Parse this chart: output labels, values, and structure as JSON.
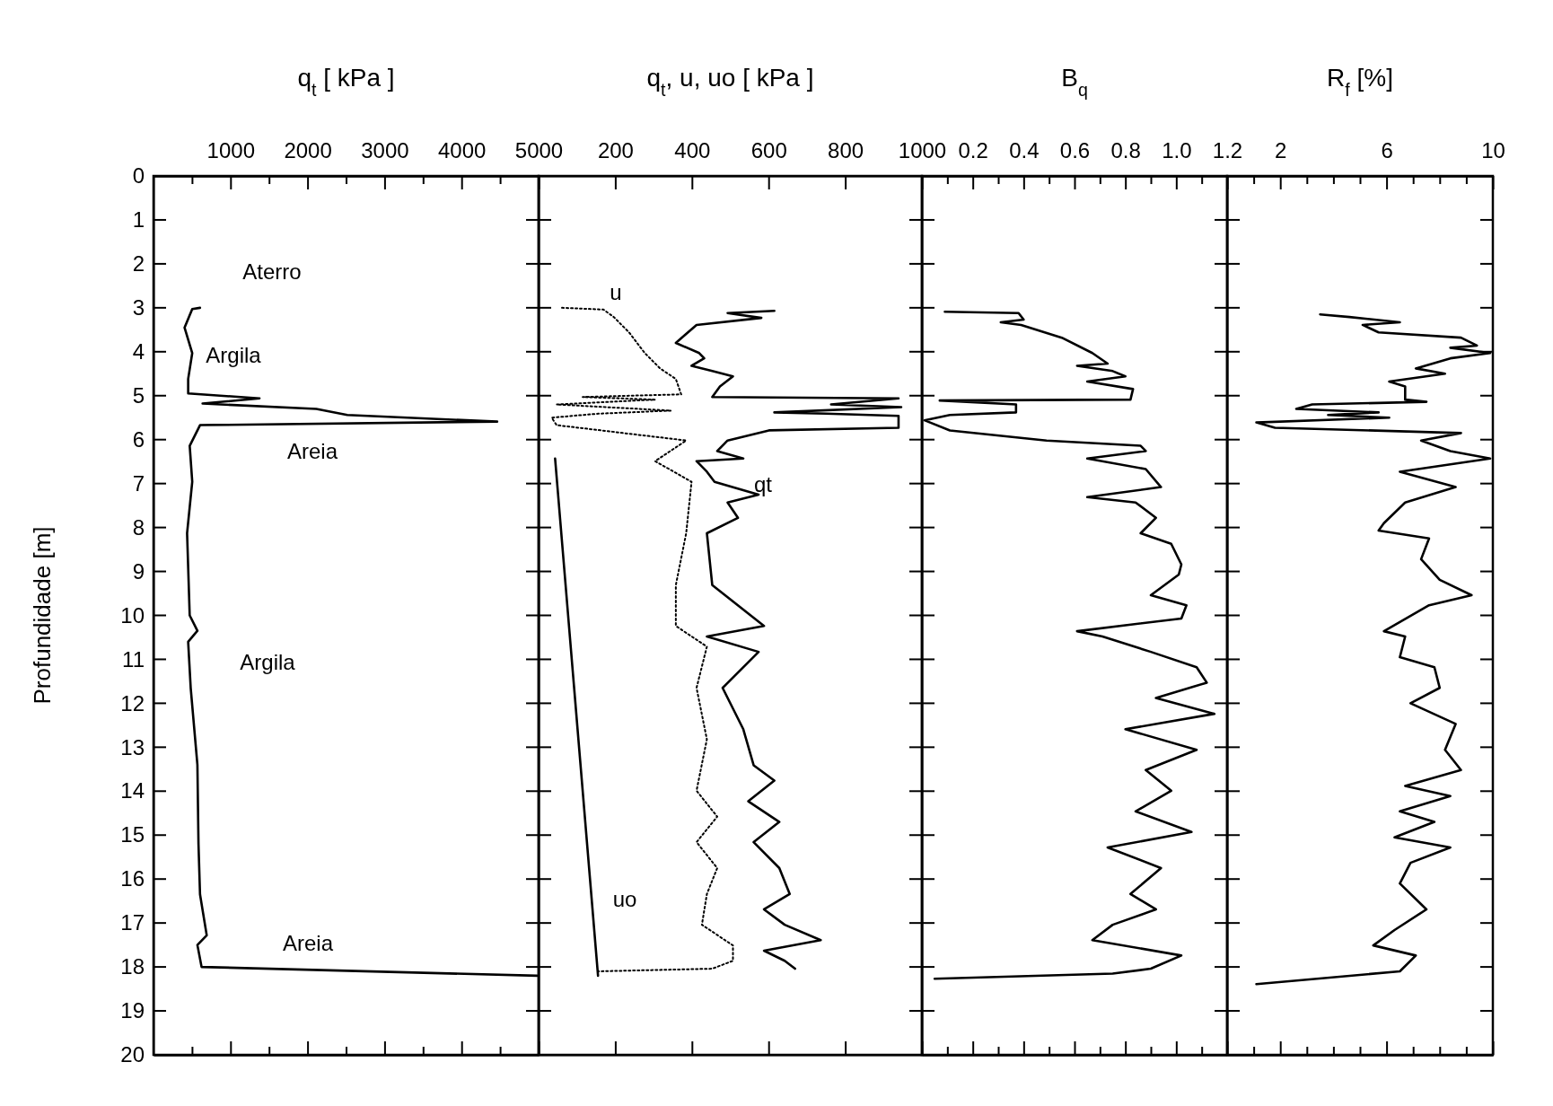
{
  "chart_data": [
    {
      "type": "line",
      "xlabel": "q$_{t}$ [ kPa ]",
      "ylabel": "Profundidade [m]",
      "xlim": [
        0,
        5000
      ],
      "ylim": [
        20,
        0
      ],
      "xticks": [
        {
          "value": 500,
          "label": null
        },
        1000,
        {
          "value": 1500,
          "label": null
        },
        2000,
        {
          "value": 2500,
          "label": null
        },
        3000,
        {
          "value": 3500,
          "label": null
        },
        4000,
        {
          "value": 4500,
          "label": null
        },
        5000
      ],
      "yticks": [
        0,
        1,
        2,
        3,
        4,
        5,
        6,
        7,
        8,
        9,
        10,
        11,
        12,
        13,
        14,
        15,
        16,
        17,
        18,
        19,
        20
      ],
      "series": [
        {
          "color": "#000000",
          "line_style": "solid",
          "x": [
            604,
            503,
            403,
            503,
            450,
            450,
            1376,
            637,
            2114,
            2516,
            4462,
            604,
            470,
            503,
            436,
            470,
            570,
            450,
            483,
            570,
            584,
            604,
            691,
            570,
            624,
            4980
          ],
          "values": [
            3.0,
            3.03,
            3.45,
            4.03,
            4.62,
            4.95,
            5.06,
            5.18,
            5.3,
            5.44,
            5.59,
            5.67,
            6.14,
            6.96,
            8.13,
            10.0,
            10.35,
            10.6,
            11.65,
            13.4,
            15.2,
            16.35,
            17.28,
            17.5,
            18.0,
            18.2
          ]
        }
      ],
      "annotations": [
        "Aterro",
        "Argila",
        "Areia",
        "Argila",
        "Areia"
      ]
    },
    {
      "type": "line",
      "xlabel": "q$_{t}$, u, uo [ kPa ]",
      "xlim": [
        0,
        1000
      ],
      "ylim": [
        20,
        0
      ],
      "tick_labels": "x",
      "xticks": [
        200,
        400,
        600,
        800,
        1000
      ],
      "yticks": [
        0,
        1,
        2,
        3,
        4,
        5,
        6,
        7,
        8,
        9,
        10,
        11,
        12,
        13,
        14,
        15,
        16,
        17,
        18,
        19,
        20
      ],
      "series": [
        {
          "name": "qt",
          "color": "#000000",
          "line_style": "solid",
          "x": [
            615,
            493,
            581,
            412,
            358,
            419,
            432,
            399,
            453,
            507,
            473,
            453,
            939,
            763,
            946,
            615,
            750,
            939,
            939,
            601,
            493,
            466,
            534,
            412,
            439,
            459,
            574,
            493,
            520,
            439,
            453,
            588,
            439,
            574,
            480,
            534,
            561,
            615,
            547,
            628,
            561,
            628,
            655,
            588,
            642,
            736,
            588,
            642,
            669
          ],
          "values": [
            3.07,
            3.12,
            3.23,
            3.39,
            3.8,
            4.03,
            4.15,
            4.32,
            4.44,
            4.56,
            4.79,
            5.03,
            5.06,
            5.2,
            5.26,
            5.38,
            5.41,
            5.46,
            5.73,
            5.79,
            6.02,
            6.26,
            6.43,
            6.49,
            6.73,
            6.96,
            7.25,
            7.43,
            7.78,
            8.13,
            9.31,
            10.24,
            10.48,
            10.83,
            11.65,
            12.59,
            13.41,
            13.76,
            14.23,
            14.7,
            15.16,
            15.75,
            16.34,
            16.69,
            17.04,
            17.39,
            17.63,
            17.86,
            18.04
          ]
        },
        {
          "name": "u",
          "color": "#000000",
          "line_style": "dotted",
          "x": [
            61,
            169,
            196,
            236,
            277,
            317,
            358,
            372,
            115,
            304,
            47,
            345,
            155,
            34,
            47,
            385,
            304,
            399,
            385,
            358,
            358,
            439,
            412,
            439,
            412,
            466,
            412,
            466,
            439,
            426,
            507,
            507,
            453,
            155
          ],
          "values": [
            3.0,
            3.04,
            3.21,
            3.56,
            4.03,
            4.38,
            4.62,
            4.97,
            5.03,
            5.09,
            5.2,
            5.34,
            5.41,
            5.5,
            5.67,
            6.02,
            6.49,
            6.96,
            8.13,
            9.31,
            10.24,
            10.71,
            11.65,
            12.82,
            13.99,
            14.58,
            15.16,
            15.75,
            16.34,
            17.04,
            17.51,
            17.86,
            18.04,
            18.1
          ]
        },
        {
          "name": "uo",
          "color": "#000000",
          "line_style": "solid",
          "x": [
            43,
            155
          ],
          "values": [
            6.43,
            18.2
          ]
        }
      ]
    },
    {
      "type": "line",
      "xlabel": "B$_{q}$",
      "xlim": [
        0,
        1.2
      ],
      "ylim": [
        20,
        0
      ],
      "tick_labels": "x",
      "xticks": [
        {
          "value": 0.1,
          "label": null
        },
        0.2,
        {
          "value": 0.3,
          "label": null
        },
        0.4,
        {
          "value": 0.5,
          "label": null
        },
        0.6,
        {
          "value": 0.7,
          "label": null
        },
        0.8,
        {
          "value": 0.9,
          "label": null
        },
        {
          "value": 1.0,
          "label": "1.0"
        },
        {
          "value": 1.1,
          "label": null
        },
        1.2
      ],
      "yticks": [
        0,
        1,
        2,
        3,
        4,
        5,
        6,
        7,
        8,
        9,
        10,
        11,
        12,
        13,
        14,
        15,
        16,
        17,
        18,
        19,
        20
      ],
      "series": [
        {
          "color": "#000000",
          "line_style": "solid",
          "x": [
            0.09,
            0.38,
            0.4,
            0.31,
            0.39,
            0.55,
            0.67,
            0.73,
            0.61,
            0.75,
            0.8,
            0.65,
            0.83,
            0.82,
            0.07,
            0.37,
            0.37,
            0.11,
            0.01,
            0.11,
            0.49,
            0.86,
            0.88,
            0.65,
            0.88,
            0.94,
            0.65,
            0.84,
            0.92,
            0.86,
            0.98,
            1.02,
            1.01,
            0.9,
            1.04,
            1.02,
            0.61,
            0.71,
            0.9,
            1.08,
            1.12,
            0.92,
            1.15,
            0.8,
            1.08,
            0.88,
            0.98,
            0.84,
            1.06,
            0.73,
            0.94,
            0.82,
            0.92,
            0.75,
            0.67,
            1.02,
            0.9,
            0.75,
            0.05
          ],
          "values": [
            3.09,
            3.12,
            3.27,
            3.33,
            3.39,
            3.68,
            4.03,
            4.27,
            4.32,
            4.44,
            4.56,
            4.68,
            4.85,
            5.09,
            5.11,
            5.2,
            5.38,
            5.44,
            5.56,
            5.79,
            6.02,
            6.14,
            6.26,
            6.43,
            6.67,
            7.08,
            7.31,
            7.43,
            7.78,
            8.13,
            8.37,
            8.84,
            9.07,
            9.54,
            9.77,
            10.07,
            10.36,
            10.48,
            10.83,
            11.18,
            11.53,
            11.88,
            12.24,
            12.59,
            13.06,
            13.52,
            13.99,
            14.46,
            14.93,
            15.28,
            15.75,
            16.34,
            16.69,
            17.04,
            17.39,
            17.74,
            18.04,
            18.15,
            18.27
          ]
        }
      ]
    },
    {
      "type": "line",
      "xlabel": "R$_{f}$ [%]",
      "xlim": [
        0,
        10
      ],
      "ylim": [
        20,
        0
      ],
      "tick_labels": "x",
      "xticks": [
        {
          "value": 1,
          "label": null
        },
        2,
        {
          "value": 3,
          "label": null
        },
        {
          "value": 4,
          "label": null
        },
        {
          "value": 5,
          "label": null
        },
        6,
        {
          "value": 7,
          "label": null
        },
        {
          "value": 8,
          "label": null
        },
        {
          "value": 9,
          "label": null
        },
        10
      ],
      "yticks": [
        0,
        1,
        2,
        3,
        4,
        5,
        6,
        7,
        8,
        9,
        10,
        11,
        12,
        13,
        14,
        15,
        16,
        17,
        18,
        19,
        20
      ],
      "series": [
        {
          "color": "#000000",
          "line_style": "solid",
          "x": [
            3.5,
            4.6,
            6.5,
            5.1,
            5.7,
            8.8,
            9.4,
            8.4,
            9.9,
            8.4,
            7.1,
            8.2,
            6.1,
            6.7,
            6.7,
            7.5,
            3.2,
            2.6,
            5.7,
            3.8,
            6.1,
            1.1,
            1.8,
            8.8,
            7.3,
            8.4,
            9.9,
            6.5,
            8.6,
            6.7,
            5.9,
            5.7,
            7.6,
            7.3,
            8.0,
            9.2,
            7.6,
            5.9,
            6.7,
            6.5,
            7.8,
            8.0,
            6.9,
            8.6,
            8.2,
            8.8,
            6.7,
            8.4,
            6.5,
            7.8,
            6.3,
            8.4,
            6.9,
            6.5,
            7.5,
            6.3,
            5.5,
            7.1,
            6.5,
            1.1
          ],
          "values": [
            3.15,
            3.21,
            3.33,
            3.39,
            3.56,
            3.68,
            3.86,
            3.91,
            4.03,
            4.15,
            4.38,
            4.5,
            4.68,
            4.79,
            5.09,
            5.14,
            5.2,
            5.3,
            5.38,
            5.44,
            5.5,
            5.61,
            5.73,
            5.85,
            6.02,
            6.26,
            6.43,
            6.73,
            7.08,
            7.43,
            7.9,
            8.07,
            8.25,
            8.72,
            9.19,
            9.54,
            9.77,
            10.36,
            10.48,
            10.95,
            11.18,
            11.65,
            12.0,
            12.47,
            13.06,
            13.52,
            13.88,
            14.11,
            14.46,
            14.7,
            15.05,
            15.28,
            15.63,
            16.1,
            16.69,
            17.16,
            17.51,
            17.74,
            18.1,
            18.39
          ]
        }
      ]
    }
  ]
}
